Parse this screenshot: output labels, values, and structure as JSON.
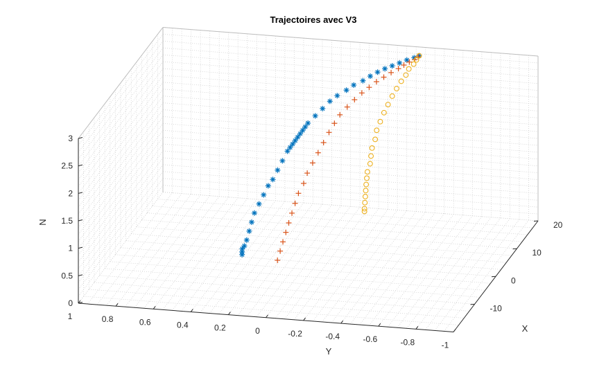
{
  "chart_data": {
    "type": "scatter",
    "title": "Trajectoires avec V3",
    "xlabel": "X",
    "ylabel": "Y",
    "zlabel": "N",
    "xlim": [
      -20,
      20
    ],
    "ylim": [
      -1,
      1
    ],
    "zlim": [
      0,
      3
    ],
    "x_ticks": [
      "-10",
      "0",
      "10",
      "20"
    ],
    "y_ticks": [
      "1",
      "0.8",
      "0.6",
      "0.4",
      "0.2",
      "0",
      "-0.2",
      "-0.4",
      "-0.6",
      "-0.8",
      "-1"
    ],
    "z_ticks": [
      "0",
      "0.5",
      "1",
      "1.5",
      "2",
      "2.5",
      "3"
    ],
    "grid": true,
    "series": [
      {
        "marker": "asterisk",
        "color": "#0072BD",
        "points": [
          [
            -2.0,
            0.33,
            0.15
          ],
          [
            -2.0,
            0.33,
            0.2
          ],
          [
            -1.9,
            0.33,
            0.25
          ],
          [
            -1.8,
            0.32,
            0.3
          ],
          [
            -1.6,
            0.31,
            0.4
          ],
          [
            -1.3,
            0.3,
            0.55
          ],
          [
            -1.0,
            0.29,
            0.7
          ],
          [
            -0.6,
            0.28,
            0.85
          ],
          [
            -0.2,
            0.26,
            1.0
          ],
          [
            0.2,
            0.24,
            1.15
          ],
          [
            0.6,
            0.22,
            1.3
          ],
          [
            1.0,
            0.2,
            1.4
          ],
          [
            1.5,
            0.18,
            1.55
          ],
          [
            2.0,
            0.16,
            1.7
          ],
          [
            2.6,
            0.14,
            1.85
          ],
          [
            3.0,
            0.13,
            1.9
          ],
          [
            3.3,
            0.12,
            1.95
          ],
          [
            3.6,
            0.11,
            2.0
          ],
          [
            3.9,
            0.1,
            2.05
          ],
          [
            4.2,
            0.09,
            2.1
          ],
          [
            4.5,
            0.08,
            2.15
          ],
          [
            4.8,
            0.07,
            2.2
          ],
          [
            5.2,
            0.06,
            2.25
          ],
          [
            6.0,
            0.03,
            2.35
          ],
          [
            6.8,
            0.0,
            2.45
          ],
          [
            7.6,
            -0.03,
            2.55
          ],
          [
            8.4,
            -0.06,
            2.62
          ],
          [
            9.2,
            -0.1,
            2.69
          ],
          [
            10.0,
            -0.13,
            2.75
          ],
          [
            10.8,
            -0.17,
            2.8
          ],
          [
            11.6,
            -0.2,
            2.85
          ],
          [
            12.4,
            -0.23,
            2.89
          ],
          [
            13.2,
            -0.26,
            2.92
          ],
          [
            14.0,
            -0.29,
            2.94
          ],
          [
            14.8,
            -0.32,
            2.96
          ],
          [
            15.6,
            -0.35,
            2.98
          ],
          [
            16.4,
            -0.38,
            2.99
          ],
          [
            17.0,
            -0.4,
            3.0
          ]
        ]
      },
      {
        "marker": "plus",
        "color": "#D95319",
        "points": [
          [
            -3.0,
            0.13,
            0.15
          ],
          [
            -2.6,
            0.12,
            0.3
          ],
          [
            -2.2,
            0.11,
            0.45
          ],
          [
            -1.7,
            0.1,
            0.6
          ],
          [
            -1.2,
            0.09,
            0.75
          ],
          [
            -0.6,
            0.08,
            0.9
          ],
          [
            0.0,
            0.07,
            1.05
          ],
          [
            0.7,
            0.06,
            1.2
          ],
          [
            1.4,
            0.04,
            1.35
          ],
          [
            2.2,
            0.03,
            1.5
          ],
          [
            3.0,
            0.01,
            1.65
          ],
          [
            3.8,
            -0.01,
            1.8
          ],
          [
            4.6,
            -0.03,
            1.95
          ],
          [
            5.4,
            -0.05,
            2.1
          ],
          [
            6.2,
            -0.07,
            2.23
          ],
          [
            7.0,
            -0.09,
            2.35
          ],
          [
            7.8,
            -0.12,
            2.46
          ],
          [
            8.6,
            -0.15,
            2.56
          ],
          [
            9.4,
            -0.18,
            2.65
          ],
          [
            10.2,
            -0.21,
            2.72
          ],
          [
            11.0,
            -0.24,
            2.79
          ],
          [
            11.8,
            -0.27,
            2.84
          ],
          [
            12.6,
            -0.3,
            2.89
          ],
          [
            13.4,
            -0.33,
            2.93
          ],
          [
            14.2,
            -0.35,
            2.96
          ],
          [
            15.0,
            -0.37,
            2.98
          ],
          [
            15.8,
            -0.39,
            2.99
          ],
          [
            16.6,
            -0.4,
            3.0
          ]
        ]
      },
      {
        "marker": "circle",
        "color": "#EDB120",
        "points": [
          [
            0.0,
            -0.3,
            1.0
          ],
          [
            0.0,
            -0.3,
            1.05
          ],
          [
            0.2,
            -0.3,
            1.15
          ],
          [
            0.4,
            -0.3,
            1.25
          ],
          [
            0.6,
            -0.3,
            1.35
          ],
          [
            0.8,
            -0.3,
            1.45
          ],
          [
            1.1,
            -0.3,
            1.55
          ],
          [
            1.4,
            -0.3,
            1.65
          ],
          [
            1.8,
            -0.31,
            1.78
          ],
          [
            2.2,
            -0.31,
            1.9
          ],
          [
            2.7,
            -0.31,
            2.02
          ],
          [
            3.3,
            -0.32,
            2.15
          ],
          [
            4.0,
            -0.32,
            2.28
          ],
          [
            4.8,
            -0.33,
            2.4
          ],
          [
            5.7,
            -0.34,
            2.52
          ],
          [
            6.7,
            -0.35,
            2.62
          ],
          [
            7.8,
            -0.36,
            2.72
          ],
          [
            9.0,
            -0.37,
            2.8
          ],
          [
            10.3,
            -0.38,
            2.87
          ],
          [
            11.6,
            -0.39,
            2.92
          ],
          [
            13.0,
            -0.39,
            2.96
          ],
          [
            14.4,
            -0.4,
            2.98
          ],
          [
            15.7,
            -0.4,
            2.99
          ],
          [
            17.0,
            -0.4,
            3.0
          ]
        ]
      }
    ]
  }
}
